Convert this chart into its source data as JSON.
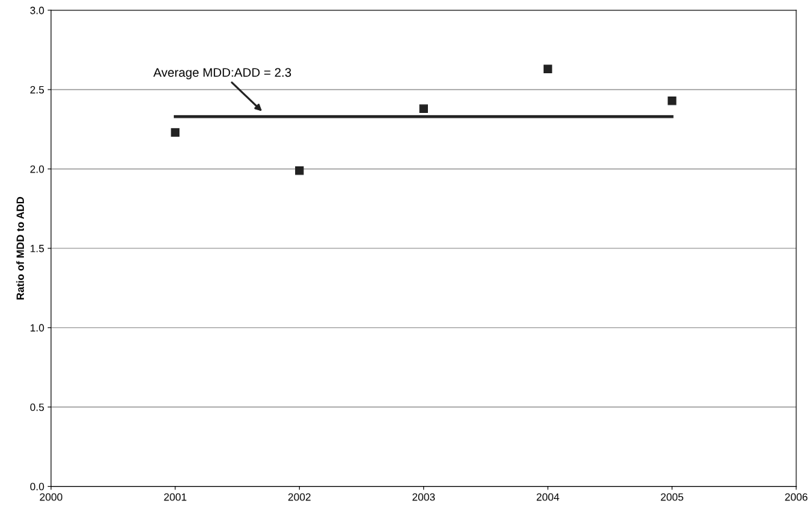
{
  "chart_data": {
    "type": "scatter",
    "ylabel": "Ratio of MDD to ADD",
    "x": [
      2001,
      2002,
      2003,
      2004,
      2005
    ],
    "series": [
      {
        "color": "#222222",
        "marker": "square",
        "values": [
          2.23,
          1.99,
          2.38,
          2.63,
          2.43
        ]
      },
      {
        "type": "line",
        "color": "#222222",
        "marker": "none",
        "line_style": "solid",
        "x": [
          2001,
          2005
        ],
        "values": [
          2.33,
          2.33
        ]
      }
    ],
    "annotations": [
      "Average MDD:ADD = 2.3"
    ],
    "xlim": [
      2000,
      2006
    ],
    "xticks": [
      2000,
      2001,
      2002,
      2003,
      2004,
      2005,
      2006
    ],
    "ylim": [
      0.0,
      3.0
    ],
    "yticks": [
      {
        "value": 0,
        "label": "0.0"
      },
      {
        "value": 0.5,
        "label": "0.5"
      },
      {
        "value": 1,
        "label": "1.0"
      },
      {
        "value": 1.5,
        "label": "1.5"
      },
      {
        "value": 2,
        "label": "2.0"
      },
      {
        "value": 2.5,
        "label": "2.5"
      },
      {
        "value": 3,
        "label": "3.0"
      }
    ],
    "grid": "y"
  }
}
